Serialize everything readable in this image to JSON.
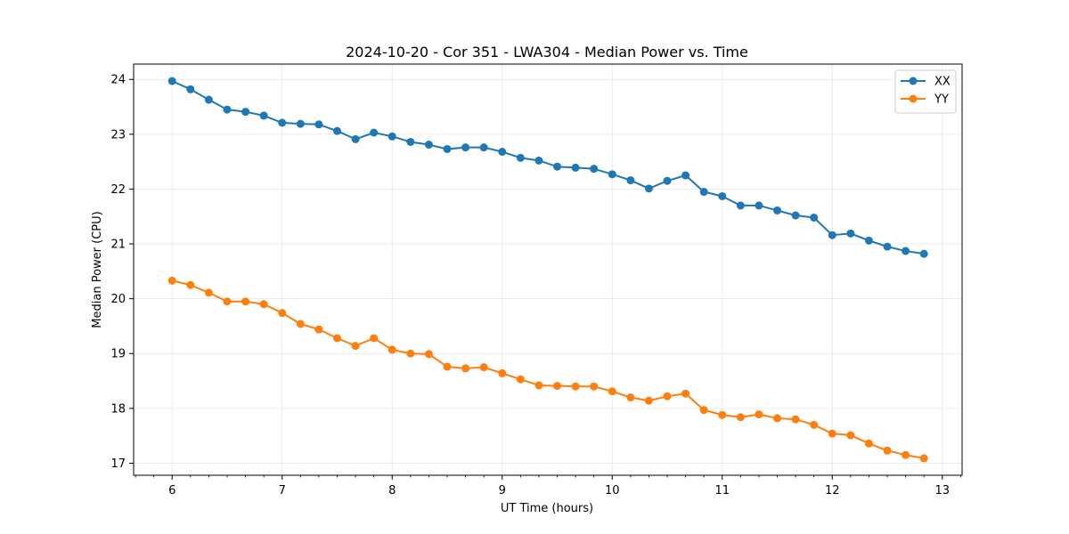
{
  "chart_data": {
    "type": "line",
    "title": "2024-10-20 - Cor 351 - LWA304 - Median Power vs. Time",
    "xlabel": "UT Time (hours)",
    "ylabel": "Median Power (CPU)",
    "xlim": [
      5.65,
      13.18
    ],
    "ylim": [
      16.78,
      24.28
    ],
    "xticks": [
      6,
      7,
      8,
      9,
      10,
      11,
      12,
      13
    ],
    "yticks": [
      17,
      18,
      19,
      20,
      21,
      22,
      23,
      24
    ],
    "grid": true,
    "legend_position": "top-right",
    "x": [
      6.0,
      6.1667,
      6.3333,
      6.5,
      6.6667,
      6.8333,
      7.0,
      7.1667,
      7.3333,
      7.5,
      7.6667,
      7.8333,
      8.0,
      8.1667,
      8.3333,
      8.5,
      8.6667,
      8.8333,
      9.0,
      9.1667,
      9.3333,
      9.5,
      9.6667,
      9.8333,
      10.0,
      10.1667,
      10.3333,
      10.5,
      10.6667,
      10.8333,
      11.0,
      11.1667,
      11.3333,
      11.5,
      11.6667,
      11.8333,
      12.0,
      12.1667,
      12.3333,
      12.5,
      12.6667,
      12.8333
    ],
    "series": [
      {
        "name": "XX",
        "color": "#1f77b4",
        "values": [
          23.97,
          23.82,
          23.63,
          23.45,
          23.41,
          23.34,
          23.21,
          23.19,
          23.18,
          23.06,
          22.91,
          23.03,
          22.96,
          22.86,
          22.81,
          22.73,
          22.76,
          22.76,
          22.68,
          22.57,
          22.52,
          22.41,
          22.39,
          22.37,
          22.27,
          22.16,
          22.01,
          22.15,
          22.25,
          21.95,
          21.87,
          21.7,
          21.7,
          21.61,
          21.52,
          21.48,
          21.16,
          21.19,
          21.06,
          20.95,
          20.87,
          20.82
        ]
      },
      {
        "name": "YY",
        "color": "#ff7f0e",
        "values": [
          20.33,
          20.25,
          20.11,
          19.95,
          19.95,
          19.9,
          19.74,
          19.54,
          19.44,
          19.28,
          19.14,
          19.28,
          19.07,
          19.0,
          18.99,
          18.76,
          18.73,
          18.75,
          18.64,
          18.53,
          18.42,
          18.41,
          18.4,
          18.4,
          18.31,
          18.2,
          18.14,
          18.22,
          18.27,
          17.97,
          17.88,
          17.84,
          17.89,
          17.82,
          17.8,
          17.7,
          17.54,
          17.51,
          17.36,
          17.23,
          17.15,
          17.09
        ]
      }
    ]
  }
}
